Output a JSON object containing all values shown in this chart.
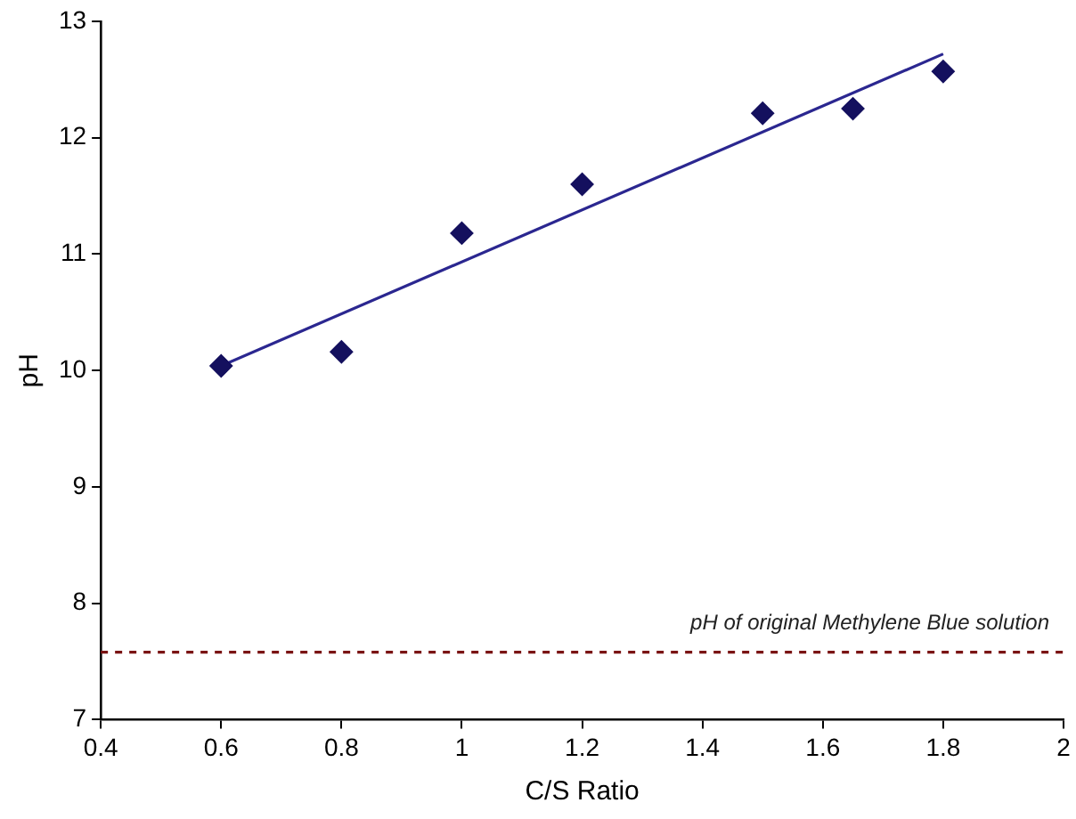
{
  "chart_data": {
    "type": "scatter",
    "xlabel": "C/S Ratio",
    "ylabel": "pH",
    "xlim": [
      0.4,
      2
    ],
    "xticks": [
      0.4,
      0.6,
      0.8,
      1,
      1.2,
      1.4,
      1.6,
      1.8,
      2
    ],
    "ylim": [
      7,
      13
    ],
    "yticks": [
      7,
      8,
      9,
      10,
      11,
      12,
      13
    ],
    "grid": false,
    "legend": false,
    "marker": "diamond",
    "series": [
      {
        "type": "scatter",
        "color": "#14105e",
        "x": [
          0.6,
          0.8,
          1.0,
          1.2,
          1.5,
          1.65,
          1.8
        ],
        "values": [
          10.04,
          10.16,
          11.18,
          11.6,
          12.21,
          12.25,
          12.57
        ]
      },
      {
        "type": "line",
        "color": "#2b2790",
        "marker": "none",
        "line_style": "solid",
        "x": [
          0.6,
          1.8
        ],
        "values": [
          10.04,
          12.72
        ]
      }
    ],
    "ref_lines": [
      {
        "axis": "y",
        "value": 7.58,
        "label": "pH of original Methylene Blue solution",
        "color": "#7a1414",
        "line_style": "dashed"
      }
    ]
  }
}
